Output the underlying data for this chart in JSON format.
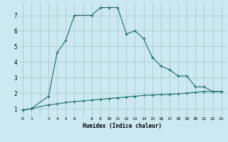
{
  "xlabel": "Humidex (Indice chaleur)",
  "background_color": "#cce8f0",
  "plot_bg_color": "#cce8f0",
  "grid_color": "#aacccc",
  "line_color": "#1a6e6a",
  "xlim": [
    -0.5,
    23.5
  ],
  "ylim": [
    0.5,
    7.8
  ],
  "xticks": [
    0,
    1,
    2,
    3,
    4,
    5,
    6,
    7,
    8,
    9,
    10,
    11,
    12,
    13,
    14,
    15,
    16,
    17,
    18,
    19,
    20,
    21,
    22,
    23
  ],
  "xtick_labels": [
    "0",
    "1",
    "",
    "3",
    "4",
    "5",
    "6",
    "",
    "8",
    "9",
    "10",
    "11",
    "12",
    "13",
    "14",
    "15",
    "16",
    "17",
    "18",
    "19",
    "20",
    "21",
    "22",
    "23"
  ],
  "yticks": [
    1,
    2,
    3,
    4,
    5,
    6,
    7
  ],
  "curve1_x": [
    0,
    1,
    3,
    4,
    5,
    6,
    8,
    9,
    10,
    11,
    12,
    13,
    14,
    15,
    16,
    17,
    18,
    19,
    20,
    21,
    22,
    23
  ],
  "curve1_y": [
    0.9,
    1.0,
    1.8,
    4.6,
    5.4,
    7.0,
    7.0,
    7.5,
    7.5,
    7.5,
    5.8,
    6.0,
    5.5,
    4.3,
    3.75,
    3.5,
    3.1,
    3.1,
    2.4,
    2.4,
    2.1,
    2.1
  ],
  "curve2_x": [
    0,
    1,
    3,
    4,
    5,
    6,
    7,
    8,
    9,
    10,
    11,
    12,
    13,
    14,
    15,
    16,
    17,
    18,
    19,
    20,
    21,
    22,
    23
  ],
  "curve2_y": [
    0.9,
    1.0,
    1.25,
    1.3,
    1.4,
    1.45,
    1.5,
    1.55,
    1.6,
    1.65,
    1.7,
    1.75,
    1.8,
    1.85,
    1.88,
    1.9,
    1.92,
    1.95,
    2.0,
    2.05,
    2.1,
    2.1,
    2.1
  ]
}
